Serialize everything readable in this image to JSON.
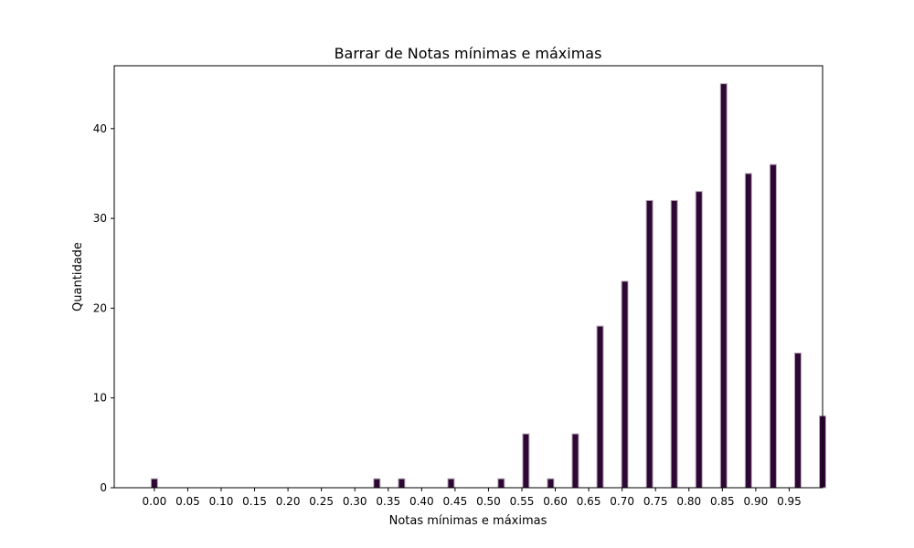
{
  "chart_data": {
    "type": "bar",
    "title": "Barrar de Notas mínimas e máximas",
    "xlabel": "Notas mínimas e máximas",
    "ylabel": "Quantidade",
    "xlim": [
      -0.06,
      1.0
    ],
    "ylim": [
      0,
      47
    ],
    "xticks": [
      0.0,
      0.05,
      0.1,
      0.15,
      0.2,
      0.25,
      0.3,
      0.35,
      0.4,
      0.45,
      0.5,
      0.55,
      0.6,
      0.65,
      0.7,
      0.75,
      0.8,
      0.85,
      0.9,
      0.95
    ],
    "xtick_labels": [
      "0.00",
      "0.05",
      "0.10",
      "0.15",
      "0.20",
      "0.25",
      "0.30",
      "0.35",
      "0.40",
      "0.45",
      "0.50",
      "0.55",
      "0.60",
      "0.65",
      "0.70",
      "0.75",
      "0.80",
      "0.85",
      "0.90",
      "0.95"
    ],
    "yticks": [
      0,
      10,
      20,
      30,
      40
    ],
    "ytick_labels": [
      "0",
      "10",
      "20",
      "30",
      "40"
    ],
    "x": [
      0.0,
      0.333,
      0.37,
      0.444,
      0.519,
      0.556,
      0.593,
      0.63,
      0.667,
      0.704,
      0.741,
      0.778,
      0.815,
      0.852,
      0.889,
      0.926,
      0.963,
      1.0
    ],
    "values": [
      1,
      1,
      1,
      1,
      1,
      6,
      1,
      6,
      18,
      23,
      32,
      32,
      33,
      45,
      35,
      36,
      15,
      8
    ],
    "bar_color": "#2e0834",
    "edge_color": "#b9a9b8",
    "grid": false
  }
}
